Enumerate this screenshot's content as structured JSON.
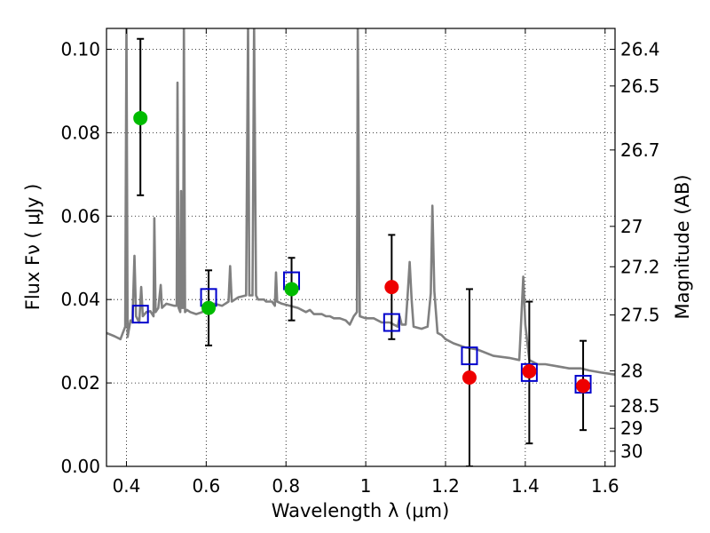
{
  "chart_data": {
    "type": "scatter",
    "xlabel": "Wavelength  λ (μm)",
    "ylabel": "Flux  Fν  ( μJy )",
    "ylabel_right": "Magnitude (AB)",
    "xlim": [
      0.35,
      1.625
    ],
    "ylim": [
      0.0,
      0.105
    ],
    "grid": true,
    "x_ticks": [
      0.4,
      0.6,
      0.8,
      1.0,
      1.2,
      1.4,
      1.6
    ],
    "x_tick_labels": [
      "0.4",
      "0.6",
      "0.8",
      "1",
      "1.2",
      "1.4",
      "1.6"
    ],
    "y_ticks": [
      0.0,
      0.02,
      0.04,
      0.06,
      0.08,
      0.1
    ],
    "y_tick_labels": [
      "0.00",
      "0.02",
      "0.04",
      "0.06",
      "0.08",
      "0.10"
    ],
    "mag_ticks": [
      {
        "label": "26.4",
        "mag": 26.4
      },
      {
        "label": "26.5",
        "mag": 26.5
      },
      {
        "label": "26.7",
        "mag": 26.7
      },
      {
        "label": "27",
        "mag": 27.0
      },
      {
        "label": "27.2",
        "mag": 27.2
      },
      {
        "label": "27.5",
        "mag": 27.5
      },
      {
        "label": "28",
        "mag": 28.0
      },
      {
        "label": "28.5",
        "mag": 28.5
      },
      {
        "label": "29",
        "mag": 29.0
      },
      {
        "label": "30",
        "mag": 30.0
      }
    ],
    "series": [
      {
        "name": "green-photometry",
        "color": "#00bb00",
        "points": [
          {
            "x": 0.435,
            "y": 0.0835,
            "err": [
              0.065,
              0.1025
            ]
          },
          {
            "x": 0.606,
            "y": 0.038,
            "err": [
              0.029,
              0.047
            ]
          },
          {
            "x": 0.814,
            "y": 0.0425,
            "err": [
              0.035,
              0.05
            ]
          }
        ]
      },
      {
        "name": "red-photometry",
        "color": "#ee0000",
        "points": [
          {
            "x": 1.065,
            "y": 0.043,
            "err": [
              0.0305,
              0.0555
            ]
          },
          {
            "x": 1.26,
            "y": 0.0213,
            "err": [
              0.0,
              0.0425
            ]
          },
          {
            "x": 1.41,
            "y": 0.0228,
            "err": [
              0.0055,
              0.0395
            ]
          },
          {
            "x": 1.545,
            "y": 0.0193,
            "err": [
              0.0087,
              0.0301
            ]
          }
        ]
      },
      {
        "name": "model-bandpass",
        "color": "#0000cc",
        "points": [
          {
            "x": 0.435,
            "y": 0.0365
          },
          {
            "x": 0.606,
            "y": 0.0405
          },
          {
            "x": 0.814,
            "y": 0.0445
          },
          {
            "x": 1.065,
            "y": 0.0345
          },
          {
            "x": 1.26,
            "y": 0.0265
          },
          {
            "x": 1.41,
            "y": 0.0225
          },
          {
            "x": 1.545,
            "y": 0.0197
          }
        ]
      }
    ],
    "spectrum": {
      "name": "model-spectrum",
      "color": "#808080",
      "points": [
        [
          0.35,
          0.032
        ],
        [
          0.37,
          0.0312
        ],
        [
          0.385,
          0.0305
        ],
        [
          0.397,
          0.0335
        ],
        [
          0.4,
          0.106
        ],
        [
          0.403,
          0.031
        ],
        [
          0.41,
          0.035
        ],
        [
          0.415,
          0.0345
        ],
        [
          0.42,
          0.0505
        ],
        [
          0.424,
          0.036
        ],
        [
          0.432,
          0.0345
        ],
        [
          0.437,
          0.043
        ],
        [
          0.441,
          0.036
        ],
        [
          0.45,
          0.037
        ],
        [
          0.46,
          0.0372
        ],
        [
          0.468,
          0.036
        ],
        [
          0.47,
          0.0595
        ],
        [
          0.473,
          0.037
        ],
        [
          0.48,
          0.038
        ],
        [
          0.486,
          0.0435
        ],
        [
          0.489,
          0.038
        ],
        [
          0.5,
          0.039
        ],
        [
          0.52,
          0.0385
        ],
        [
          0.526,
          0.0385
        ],
        [
          0.528,
          0.092
        ],
        [
          0.531,
          0.038
        ],
        [
          0.535,
          0.037
        ],
        [
          0.537,
          0.066
        ],
        [
          0.539,
          0.038
        ],
        [
          0.542,
          0.038
        ],
        [
          0.544,
          0.106
        ],
        [
          0.547,
          0.037
        ],
        [
          0.552,
          0.0375
        ],
        [
          0.56,
          0.037
        ],
        [
          0.575,
          0.0365
        ],
        [
          0.59,
          0.037
        ],
        [
          0.6,
          0.0385
        ],
        [
          0.62,
          0.039
        ],
        [
          0.64,
          0.0385
        ],
        [
          0.656,
          0.0395
        ],
        [
          0.66,
          0.048
        ],
        [
          0.664,
          0.0395
        ],
        [
          0.68,
          0.0405
        ],
        [
          0.7,
          0.041
        ],
        [
          0.705,
          0.106
        ],
        [
          0.708,
          0.041
        ],
        [
          0.716,
          0.041
        ],
        [
          0.72,
          0.106
        ],
        [
          0.725,
          0.041
        ],
        [
          0.73,
          0.04
        ],
        [
          0.745,
          0.04
        ],
        [
          0.75,
          0.0395
        ],
        [
          0.765,
          0.0395
        ],
        [
          0.772,
          0.0385
        ],
        [
          0.775,
          0.0465
        ],
        [
          0.778,
          0.0395
        ],
        [
          0.79,
          0.039
        ],
        [
          0.81,
          0.0385
        ],
        [
          0.83,
          0.038
        ],
        [
          0.85,
          0.037
        ],
        [
          0.86,
          0.0375
        ],
        [
          0.87,
          0.0365
        ],
        [
          0.88,
          0.0365
        ],
        [
          0.89,
          0.0365
        ],
        [
          0.9,
          0.036
        ],
        [
          0.91,
          0.036
        ],
        [
          0.92,
          0.0355
        ],
        [
          0.935,
          0.0355
        ],
        [
          0.95,
          0.035
        ],
        [
          0.96,
          0.034
        ],
        [
          0.97,
          0.036
        ],
        [
          0.978,
          0.037
        ],
        [
          0.98,
          0.106
        ],
        [
          0.985,
          0.036
        ],
        [
          1.0,
          0.0355
        ],
        [
          1.02,
          0.0355
        ],
        [
          1.04,
          0.0345
        ],
        [
          1.06,
          0.0345
        ],
        [
          1.08,
          0.0335
        ],
        [
          1.085,
          0.036
        ],
        [
          1.09,
          0.034
        ],
        [
          1.1,
          0.034
        ],
        [
          1.105,
          0.041
        ],
        [
          1.11,
          0.049
        ],
        [
          1.115,
          0.04
        ],
        [
          1.12,
          0.0335
        ],
        [
          1.14,
          0.033
        ],
        [
          1.155,
          0.0335
        ],
        [
          1.163,
          0.0415
        ],
        [
          1.167,
          0.0625
        ],
        [
          1.172,
          0.042
        ],
        [
          1.18,
          0.032
        ],
        [
          1.19,
          0.0315
        ],
        [
          1.2,
          0.0305
        ],
        [
          1.22,
          0.0295
        ],
        [
          1.25,
          0.0285
        ],
        [
          1.28,
          0.028
        ],
        [
          1.32,
          0.0265
        ],
        [
          1.36,
          0.026
        ],
        [
          1.385,
          0.0255
        ],
        [
          1.39,
          0.0355
        ],
        [
          1.395,
          0.0455
        ],
        [
          1.4,
          0.034
        ],
        [
          1.41,
          0.0255
        ],
        [
          1.43,
          0.0245
        ],
        [
          1.45,
          0.0245
        ],
        [
          1.48,
          0.024
        ],
        [
          1.51,
          0.0235
        ],
        [
          1.54,
          0.0235
        ],
        [
          1.56,
          0.023
        ],
        [
          1.59,
          0.0225
        ],
        [
          1.625,
          0.022
        ]
      ]
    }
  }
}
